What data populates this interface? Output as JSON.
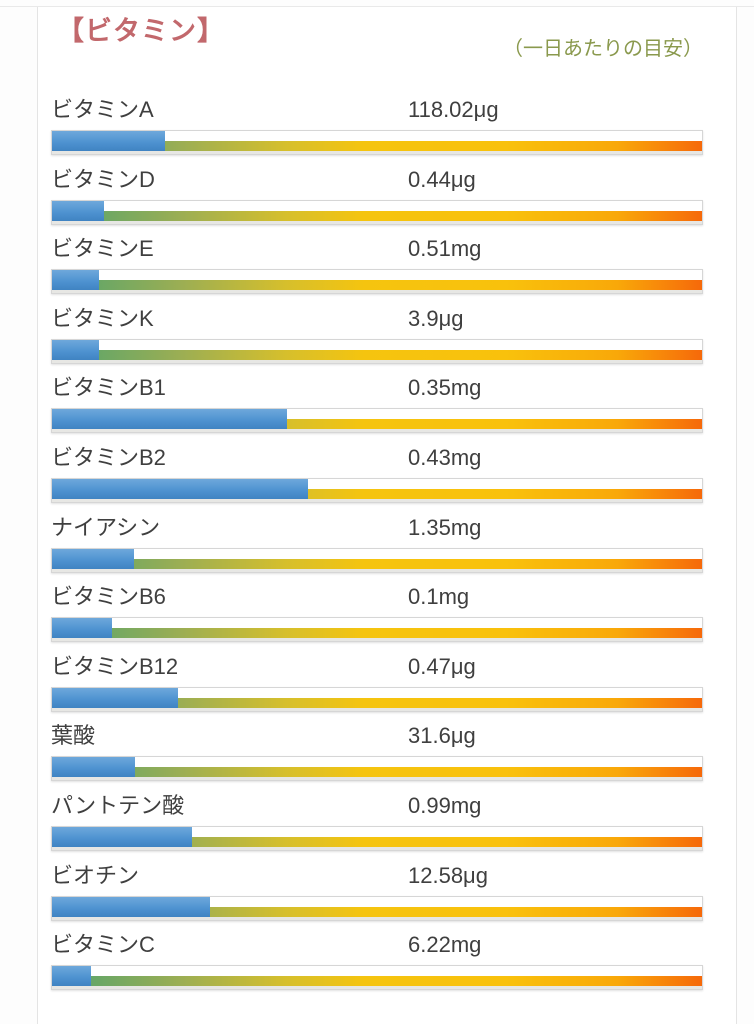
{
  "header": {
    "title": "【ビタミン】",
    "subtitle": "（一日あたりの目安）"
  },
  "colors": {
    "title": "#c2686c",
    "subtitle": "#8a994d",
    "bar_fill_blue": "#4f93d1",
    "gradient_start_green": "#57a287",
    "gradient_mid_yellow": "#f5c40f",
    "gradient_end_orange": "#f6690a",
    "text": "#3f3f3f"
  },
  "rows": [
    {
      "label": "ビタミンA",
      "value": "118.02μg",
      "percent": 17.4
    },
    {
      "label": "ビタミンD",
      "value": "0.44μg",
      "percent": 8.0
    },
    {
      "label": "ビタミンE",
      "value": "0.51mg",
      "percent": 7.2
    },
    {
      "label": "ビタミンK",
      "value": "3.9μg",
      "percent": 7.2
    },
    {
      "label": "ビタミンB1",
      "value": "0.35mg",
      "percent": 36.2
    },
    {
      "label": "ビタミンB2",
      "value": "0.43mg",
      "percent": 39.4
    },
    {
      "label": "ナイアシン",
      "value": "1.35mg",
      "percent": 12.6
    },
    {
      "label": "ビタミンB6",
      "value": "0.1mg",
      "percent": 9.2
    },
    {
      "label": "ビタミンB12",
      "value": "0.47μg",
      "percent": 19.4
    },
    {
      "label": "葉酸",
      "value": "31.6μg",
      "percent": 12.8
    },
    {
      "label": "パントテン酸",
      "value": "0.99mg",
      "percent": 21.6
    },
    {
      "label": "ビオチン",
      "value": "12.58μg",
      "percent": 24.3
    },
    {
      "label": "ビタミンC",
      "value": "6.22mg",
      "percent": 6.0
    }
  ],
  "chart_data": {
    "type": "bar",
    "title": "ビタミン",
    "subtitle": "一日あたりの目安",
    "orientation": "horizontal",
    "categories": [
      "ビタミンA",
      "ビタミンD",
      "ビタミンE",
      "ビタミンK",
      "ビタミンB1",
      "ビタミンB2",
      "ナイアシン",
      "ビタミンB6",
      "ビタミンB12",
      "葉酸",
      "パントテン酸",
      "ビオチン",
      "ビタミンC"
    ],
    "values": [
      118.02,
      0.44,
      0.51,
      3.9,
      0.35,
      0.43,
      1.35,
      0.1,
      0.47,
      31.6,
      0.99,
      12.58,
      6.22
    ],
    "units": [
      "μg",
      "μg",
      "mg",
      "μg",
      "mg",
      "mg",
      "mg",
      "mg",
      "μg",
      "μg",
      "mg",
      "μg",
      "mg"
    ],
    "value_labels": [
      "118.02μg",
      "0.44μg",
      "0.51mg",
      "3.9μg",
      "0.35mg",
      "0.43mg",
      "1.35mg",
      "0.1mg",
      "0.47μg",
      "31.6μg",
      "0.99mg",
      "12.58μg",
      "6.22mg"
    ],
    "percent_of_daily_guideline_bar": [
      17.4,
      8.0,
      7.2,
      7.2,
      36.2,
      39.4,
      12.6,
      9.2,
      19.4,
      12.8,
      21.6,
      24.3,
      6.0
    ],
    "bar_range_percent": [
      0,
      100
    ],
    "legend": "none",
    "grid": false
  }
}
